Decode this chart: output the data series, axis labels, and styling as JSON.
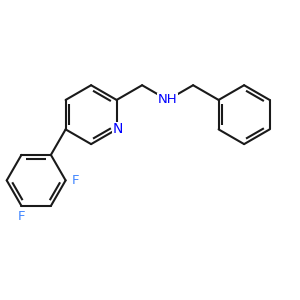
{
  "background": "#ffffff",
  "bond_color": "#1a1a1a",
  "N_color": "#0000ff",
  "F_color": "#4488ff",
  "bond_width": 1.5,
  "font_size_atom": 9.5,
  "figsize": [
    3.0,
    3.0
  ],
  "dpi": 100,
  "xlim": [
    0,
    10
  ],
  "ylim": [
    0,
    10
  ]
}
